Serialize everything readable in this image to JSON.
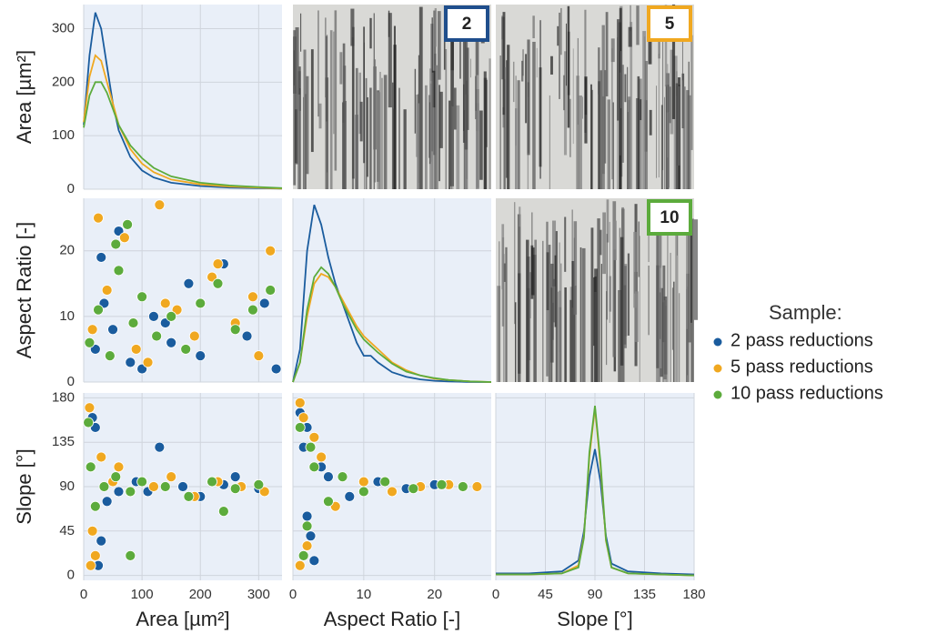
{
  "chart_data": [
    {
      "type": "line",
      "ylabel": "Area [µm²]",
      "xlim": [
        0,
        340
      ],
      "xticks": [
        0,
        100,
        200,
        300
      ],
      "ylim": [
        0,
        345
      ],
      "yticks": [
        0,
        100,
        200,
        300
      ],
      "x": [
        0,
        10,
        20,
        30,
        40,
        50,
        60,
        80,
        100,
        120,
        150,
        200,
        250,
        300,
        340
      ],
      "series": [
        {
          "name": "2 pass reductions",
          "color": "#1a5c9e",
          "values": [
            120,
            250,
            330,
            300,
            230,
            160,
            110,
            60,
            35,
            22,
            12,
            6,
            3,
            2,
            1
          ]
        },
        {
          "name": "5 pass reductions",
          "color": "#f0a820",
          "values": [
            125,
            210,
            250,
            240,
            200,
            160,
            120,
            75,
            48,
            32,
            18,
            9,
            5,
            3,
            1
          ]
        },
        {
          "name": "10 pass reductions",
          "color": "#5cab3c",
          "values": [
            115,
            175,
            200,
            200,
            180,
            150,
            120,
            82,
            58,
            40,
            24,
            12,
            7,
            4,
            2
          ]
        }
      ]
    },
    {
      "type": "scatter",
      "ylabel": "Aspect Ratio [-]",
      "xlim": [
        0,
        340
      ],
      "xticks": [
        0,
        100,
        200,
        300
      ],
      "ylim": [
        0,
        28
      ],
      "yticks": [
        0,
        10,
        20
      ],
      "series": [
        {
          "name": "2 pass reductions",
          "color": "#1a5c9e",
          "x": [
            20,
            35,
            50,
            80,
            120,
            150,
            180,
            200,
            240,
            280,
            310,
            60,
            100,
            30,
            140,
            330
          ],
          "values": [
            5,
            12,
            8,
            3,
            10,
            6,
            15,
            4,
            18,
            7,
            12,
            23,
            2,
            19,
            9,
            2
          ]
        },
        {
          "name": "5 pass reductions",
          "color": "#f0a820",
          "x": [
            15,
            40,
            70,
            90,
            130,
            160,
            190,
            220,
            260,
            290,
            320,
            25,
            110,
            140,
            230,
            300
          ],
          "values": [
            8,
            14,
            22,
            5,
            27,
            11,
            7,
            16,
            9,
            13,
            20,
            25,
            3,
            12,
            18,
            4
          ]
        },
        {
          "name": "10 pass reductions",
          "color": "#5cab3c",
          "x": [
            10,
            25,
            45,
            60,
            85,
            100,
            125,
            150,
            175,
            200,
            230,
            260,
            290,
            320,
            55,
            75
          ],
          "values": [
            6,
            11,
            4,
            17,
            9,
            13,
            7,
            10,
            5,
            12,
            15,
            8,
            11,
            14,
            21,
            24
          ]
        }
      ]
    },
    {
      "type": "line",
      "xlim": [
        0,
        28
      ],
      "xticks": [
        0,
        10,
        20
      ],
      "ylim": [
        0,
        28
      ],
      "yticks": [
        0,
        10,
        20
      ],
      "x": [
        0,
        1,
        2,
        3,
        4,
        5,
        6,
        7,
        8,
        9,
        10,
        11,
        12,
        14,
        16,
        18,
        20,
        22,
        25,
        28
      ],
      "series": [
        {
          "name": "2 pass reductions",
          "color": "#1a5c9e",
          "values": [
            0,
            5,
            20,
            27,
            24,
            19,
            15,
            12,
            9,
            6,
            4,
            4,
            3,
            1.5,
            0.8,
            0.4,
            0.2,
            0.1,
            0,
            0
          ]
        },
        {
          "name": "5 pass reductions",
          "color": "#f0a820",
          "values": [
            0,
            3,
            10,
            15,
            16.5,
            16,
            14.5,
            12.5,
            10.5,
            8.5,
            7,
            6,
            5,
            3,
            1.8,
            1,
            0.5,
            0.3,
            0.1,
            0
          ]
        },
        {
          "name": "10 pass reductions",
          "color": "#5cab3c",
          "values": [
            0,
            3,
            11,
            16,
            17.5,
            16.5,
            14.5,
            12,
            10,
            8,
            6.5,
            5.5,
            4.5,
            2.8,
            1.6,
            1,
            0.6,
            0.3,
            0.1,
            0
          ]
        }
      ]
    },
    {
      "type": "scatter",
      "xlabel": "Area [µm²]",
      "ylabel": "Slope [°]",
      "xlim": [
        0,
        340
      ],
      "xticks": [
        0,
        100,
        200,
        300
      ],
      "ylim": [
        -5,
        185
      ],
      "yticks": [
        0,
        45,
        90,
        135,
        180
      ],
      "series": [
        {
          "name": "2 pass reductions",
          "color": "#1a5c9e",
          "x": [
            15,
            20,
            30,
            60,
            90,
            130,
            170,
            200,
            240,
            260,
            300,
            25,
            40,
            110
          ],
          "values": [
            160,
            150,
            35,
            85,
            95,
            130,
            90,
            80,
            92,
            100,
            88,
            10,
            75,
            85
          ]
        },
        {
          "name": "5 pass reductions",
          "color": "#f0a820",
          "x": [
            10,
            15,
            30,
            50,
            80,
            120,
            150,
            190,
            230,
            270,
            310,
            20,
            12,
            60
          ],
          "values": [
            170,
            45,
            120,
            95,
            85,
            90,
            100,
            80,
            95,
            90,
            85,
            20,
            10,
            110
          ]
        },
        {
          "name": "10 pass reductions",
          "color": "#5cab3c",
          "x": [
            8,
            12,
            20,
            35,
            55,
            80,
            100,
            140,
            180,
            220,
            260,
            300,
            80,
            240
          ],
          "values": [
            155,
            110,
            70,
            90,
            100,
            85,
            95,
            90,
            80,
            95,
            88,
            92,
            20,
            65
          ]
        }
      ]
    },
    {
      "type": "scatter",
      "xlabel": "Aspect Ratio [-]",
      "xlim": [
        0,
        28
      ],
      "xticks": [
        0,
        10,
        20
      ],
      "ylim": [
        -5,
        185
      ],
      "yticks": [
        0,
        45,
        90,
        135,
        180
      ],
      "series": [
        {
          "name": "2 pass reductions",
          "color": "#1a5c9e",
          "x": [
            1,
            2,
            2.5,
            3,
            5,
            8,
            12,
            16,
            20,
            1.5,
            2,
            4
          ],
          "values": [
            165,
            150,
            40,
            15,
            100,
            80,
            95,
            88,
            92,
            130,
            60,
            110
          ]
        },
        {
          "name": "5 pass reductions",
          "color": "#f0a820",
          "x": [
            1,
            1.5,
            2,
            4,
            6,
            10,
            14,
            18,
            22,
            26,
            1,
            3
          ],
          "values": [
            175,
            160,
            30,
            120,
            70,
            95,
            85,
            90,
            92,
            90,
            10,
            140
          ]
        },
        {
          "name": "10 pass reductions",
          "color": "#5cab3c",
          "x": [
            1,
            1.5,
            2,
            3,
            5,
            7,
            10,
            13,
            17,
            21,
            24,
            2.5
          ],
          "values": [
            150,
            20,
            50,
            110,
            75,
            100,
            85,
            95,
            88,
            92,
            90,
            130
          ]
        }
      ]
    },
    {
      "type": "line",
      "xlabel": "Slope [°]",
      "xlim": [
        0,
        180
      ],
      "xticks": [
        0,
        45,
        90,
        135,
        180
      ],
      "ylim": [
        -5,
        185
      ],
      "yticks": [
        0,
        45,
        90,
        135,
        180
      ],
      "x": [
        0,
        30,
        60,
        75,
        80,
        85,
        90,
        95,
        100,
        105,
        120,
        150,
        180
      ],
      "series": [
        {
          "name": "2 pass reductions",
          "color": "#1a5c9e",
          "values": [
            2,
            2,
            4,
            15,
            45,
            100,
            128,
            95,
            40,
            12,
            4,
            2,
            1
          ]
        },
        {
          "name": "5 pass reductions",
          "color": "#f0a820",
          "values": [
            1,
            1,
            2,
            10,
            40,
            120,
            170,
            110,
            35,
            8,
            2,
            1,
            0
          ]
        },
        {
          "name": "10 pass reductions",
          "color": "#5cab3c",
          "values": [
            1,
            1,
            2,
            8,
            38,
            125,
            172,
            115,
            36,
            8,
            2,
            1,
            0
          ]
        }
      ]
    }
  ],
  "legend": {
    "title": "Sample:"
  },
  "micrographs": [
    {
      "label": "2",
      "color": "#1f4e8c"
    },
    {
      "label": "5",
      "color": "#f0a820"
    },
    {
      "label": "10",
      "color": "#5cab3c"
    }
  ]
}
